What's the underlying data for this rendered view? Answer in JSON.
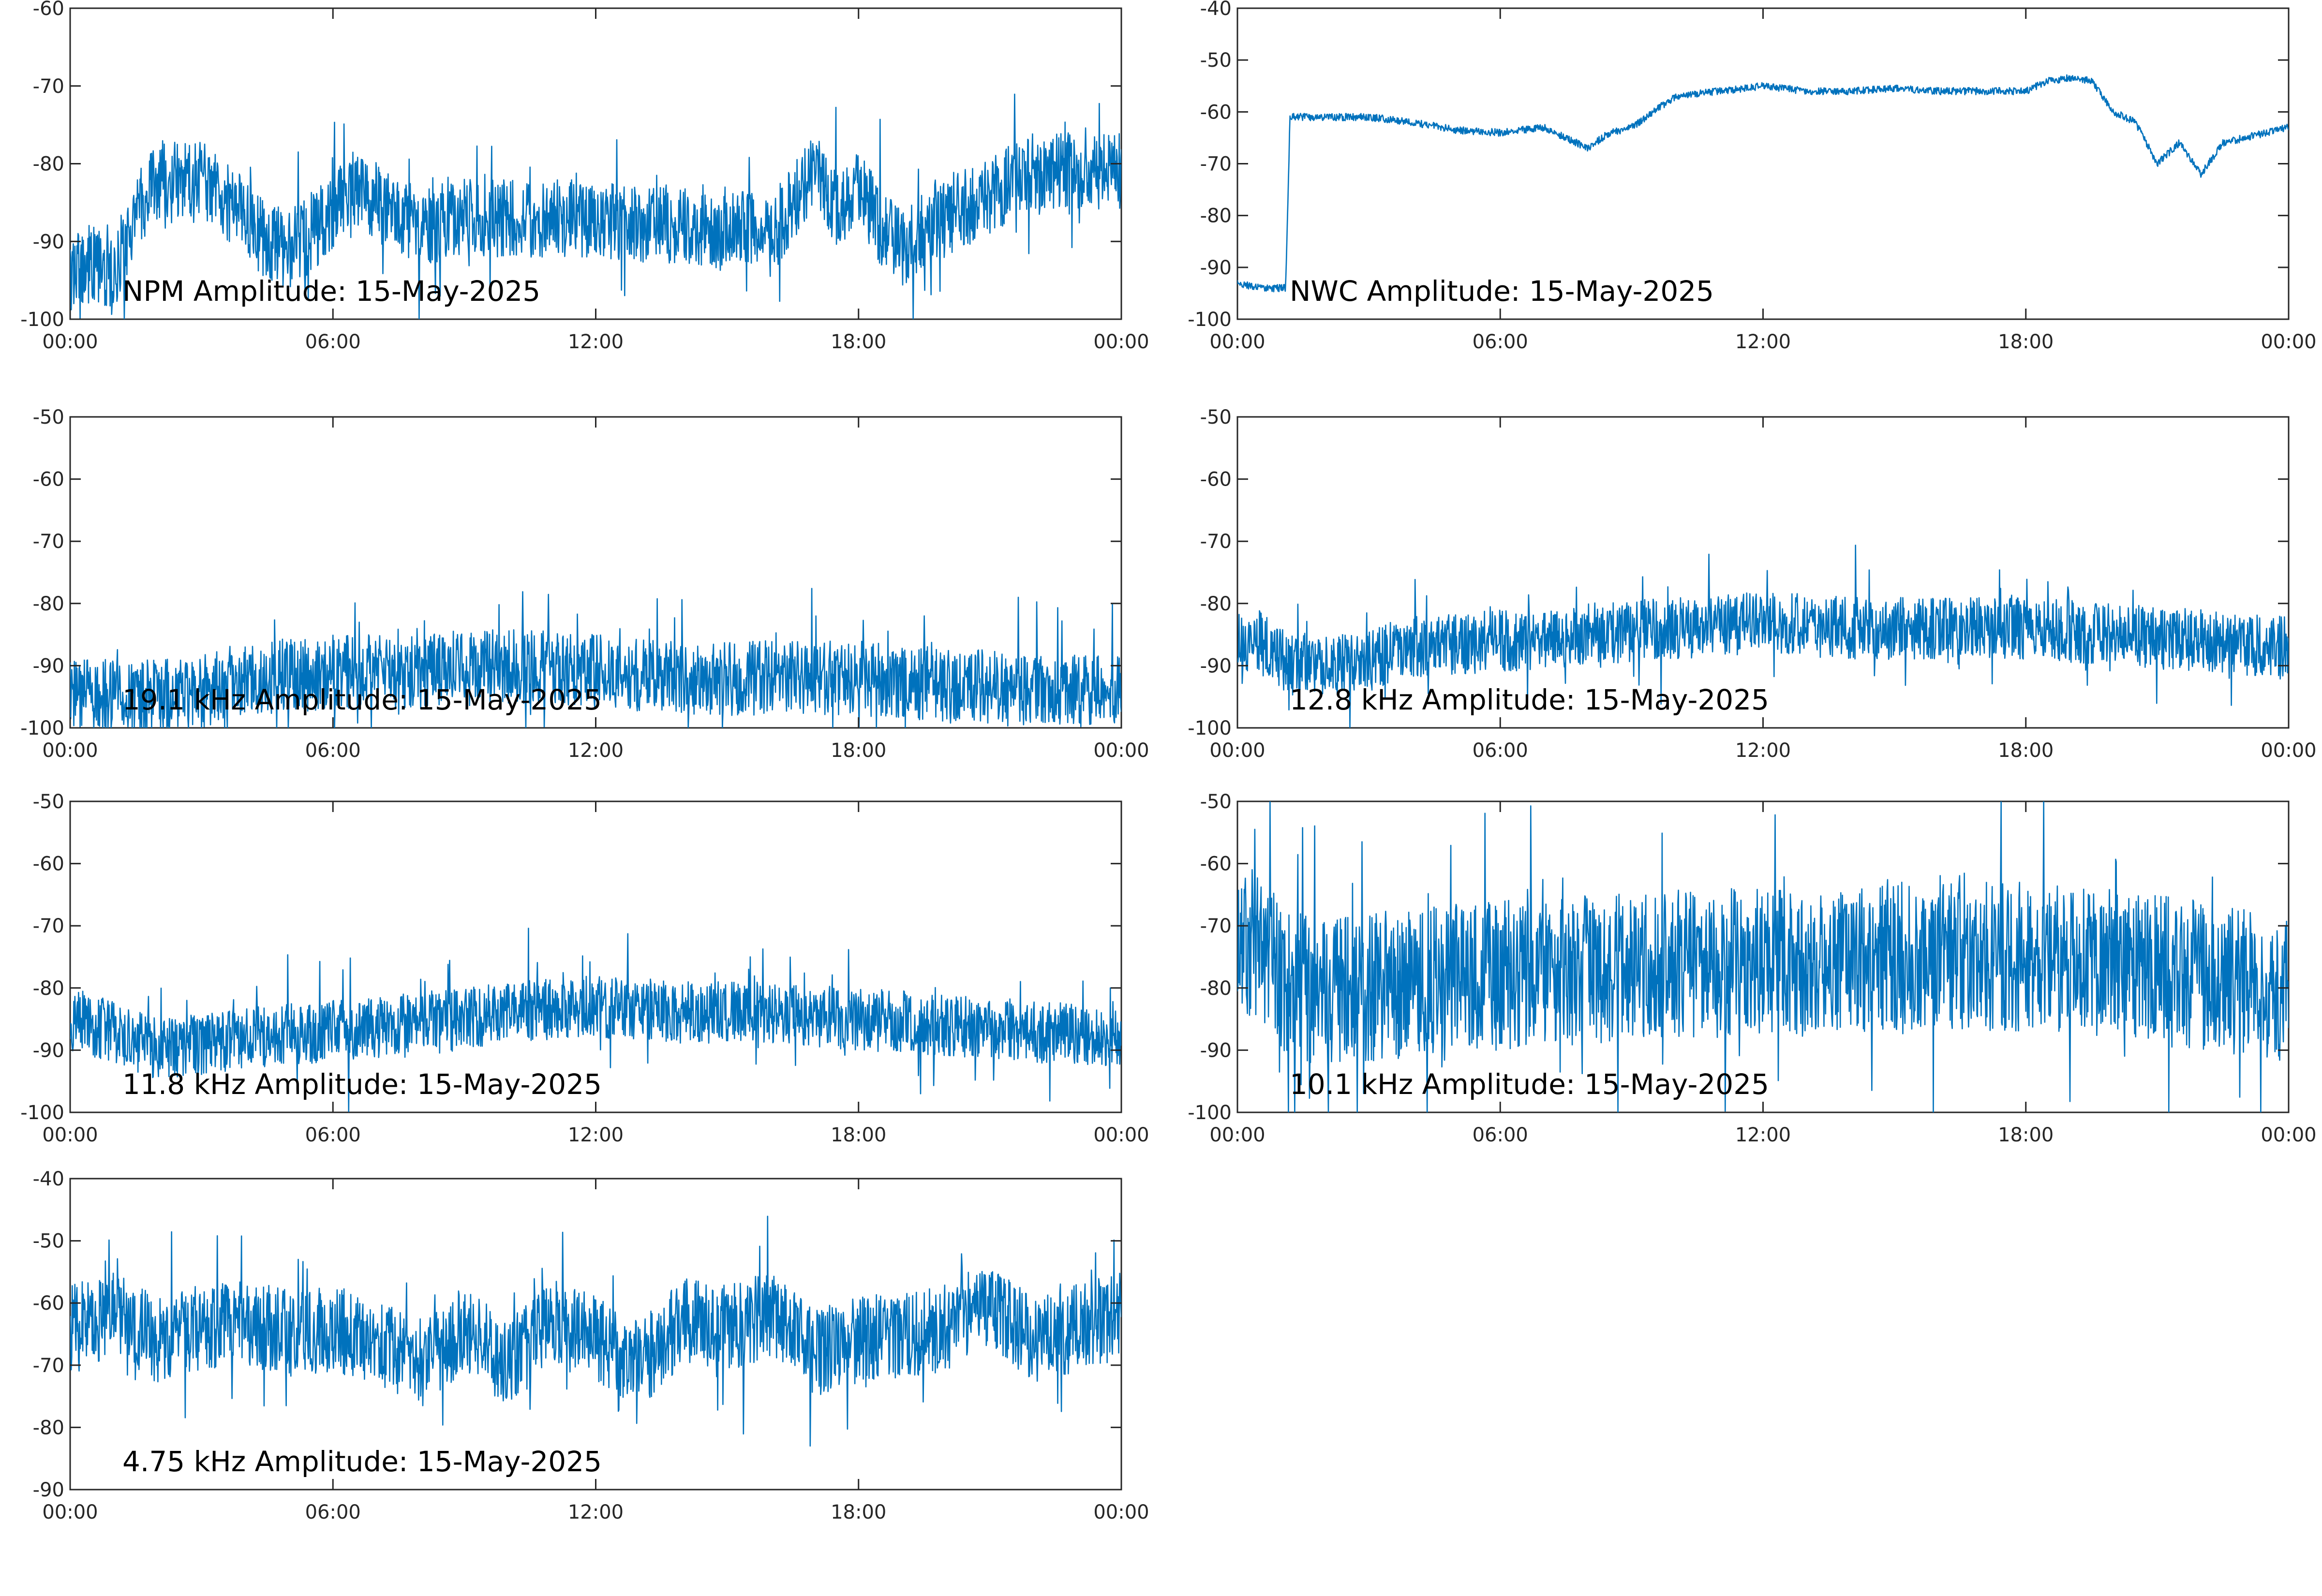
{
  "chart_data": [
    {
      "type": "line",
      "title": "NPM Amplitude: 15-May-2025",
      "x_tick_labels": [
        "00:00",
        "06:00",
        "12:00",
        "18:00",
        "00:00"
      ],
      "xlim_hours": [
        0,
        24
      ],
      "ylim": [
        -100,
        -60
      ],
      "y_ticks": [
        -60,
        -70,
        -80,
        -90,
        -100
      ],
      "grid": false,
      "series": [
        {
          "color": "#0072BD",
          "noise": 5,
          "x": [
            0,
            0.5,
            1,
            1.5,
            2,
            3,
            4,
            4.5,
            5,
            5.5,
            6,
            6.5,
            7,
            7.5,
            8,
            9,
            10,
            11,
            12,
            13,
            14,
            15,
            15.5,
            16,
            16.5,
            17,
            17.5,
            18,
            18.5,
            19,
            19.5,
            20,
            21,
            22,
            23,
            24
          ],
          "y": [
            -94,
            -93,
            -95,
            -86,
            -82,
            -82,
            -87,
            -90,
            -91,
            -89,
            -86,
            -83,
            -85,
            -87,
            -88,
            -87,
            -87,
            -87,
            -87,
            -88,
            -88,
            -89,
            -88,
            -90,
            -85,
            -81,
            -86,
            -83,
            -88,
            -91,
            -88,
            -87,
            -84,
            -81,
            -81,
            -81
          ]
        }
      ]
    },
    {
      "type": "line",
      "title": "NWC Amplitude: 15-May-2025",
      "x_tick_labels": [
        "00:00",
        "06:00",
        "12:00",
        "18:00",
        "00:00"
      ],
      "xlim_hours": [
        0,
        24
      ],
      "ylim": [
        -100,
        -40
      ],
      "y_ticks": [
        -40,
        -50,
        -60,
        -70,
        -80,
        -90,
        -100
      ],
      "grid": false,
      "series": [
        {
          "color": "#0072BD",
          "noise": 0.7,
          "x": [
            0,
            0.5,
            1.1,
            1.2,
            2,
            3,
            4,
            5,
            6,
            7,
            8,
            8.5,
            9,
            10,
            11,
            12,
            13,
            14,
            15,
            16,
            17,
            18,
            18.5,
            19,
            19.5,
            20,
            20.5,
            21,
            21.5,
            22,
            22.5,
            23,
            24
          ],
          "y": [
            -93,
            -94,
            -94,
            -61,
            -61,
            -61,
            -62,
            -63.5,
            -64,
            -63,
            -67,
            -64,
            -63,
            -57,
            -56,
            -55,
            -56,
            -56,
            -55.5,
            -56,
            -56,
            -56,
            -54,
            -53.5,
            -54,
            -60,
            -62,
            -70,
            -66,
            -72,
            -66,
            -65,
            -63
          ]
        }
      ]
    },
    {
      "type": "line",
      "title": "19.1 kHz Amplitude: 15-May-2025",
      "x_tick_labels": [
        "00:00",
        "06:00",
        "12:00",
        "18:00",
        "00:00"
      ],
      "xlim_hours": [
        0,
        24
      ],
      "ylim": [
        -100,
        -50
      ],
      "y_ticks": [
        -50,
        -60,
        -70,
        -80,
        -90,
        -100
      ],
      "grid": false,
      "series": [
        {
          "color": "#0072BD",
          "noise": 6,
          "x": [
            0,
            2,
            3,
            4,
            6,
            8,
            10,
            12,
            14,
            16,
            18,
            20,
            22,
            24
          ],
          "y": [
            -95,
            -95,
            -94,
            -92,
            -91,
            -91,
            -90,
            -91,
            -92,
            -92,
            -92,
            -93,
            -94,
            -94
          ]
        }
      ]
    },
    {
      "type": "line",
      "title": "12.8 kHz Amplitude: 15-May-2025",
      "x_tick_labels": [
        "00:00",
        "06:00",
        "12:00",
        "18:00",
        "00:00"
      ],
      "xlim_hours": [
        0,
        24
      ],
      "ylim": [
        -100,
        -50
      ],
      "y_ticks": [
        -50,
        -60,
        -70,
        -80,
        -90,
        -100
      ],
      "grid": false,
      "series": [
        {
          "color": "#0072BD",
          "noise": 5,
          "x": [
            0,
            0.5,
            1,
            2,
            3,
            4,
            6,
            8,
            10,
            12,
            14,
            16,
            18,
            20,
            22,
            24
          ],
          "y": [
            -86,
            -86,
            -89,
            -90,
            -89,
            -87,
            -86,
            -85,
            -84,
            -83,
            -84,
            -84,
            -84,
            -85,
            -86,
            -87
          ]
        }
      ]
    },
    {
      "type": "line",
      "title": "11.8 kHz Amplitude: 15-May-2025",
      "x_tick_labels": [
        "00:00",
        "06:00",
        "12:00",
        "18:00",
        "00:00"
      ],
      "xlim_hours": [
        0,
        24
      ],
      "ylim": [
        -100,
        -50
      ],
      "y_ticks": [
        -50,
        -60,
        -70,
        -80,
        -90,
        -100
      ],
      "grid": false,
      "series": [
        {
          "color": "#0072BD",
          "noise": 5,
          "x": [
            0,
            1,
            2,
            3,
            4,
            6,
            8,
            10,
            12,
            14,
            16,
            18,
            20,
            22,
            24
          ],
          "y": [
            -85,
            -87,
            -90,
            -89,
            -88,
            -87,
            -86,
            -84,
            -83,
            -84,
            -84,
            -85,
            -86,
            -87,
            -88
          ]
        }
      ]
    },
    {
      "type": "line",
      "title": "10.1 kHz Amplitude: 15-May-2025",
      "x_tick_labels": [
        "00:00",
        "06:00",
        "12:00",
        "18:00",
        "00:00"
      ],
      "xlim_hours": [
        0,
        24
      ],
      "ylim": [
        -100,
        -50
      ],
      "y_ticks": [
        -50,
        -60,
        -70,
        -80,
        -90,
        -100
      ],
      "grid": false,
      "series": [
        {
          "color": "#0072BD",
          "noise": 12,
          "x": [
            0,
            0.5,
            1,
            2,
            3,
            4,
            6,
            8,
            10,
            12,
            14,
            16,
            18,
            20,
            22,
            24
          ],
          "y": [
            -75,
            -72,
            -79,
            -81,
            -80,
            -79,
            -78,
            -77,
            -76,
            -76,
            -76,
            -75,
            -75,
            -76,
            -78,
            -80
          ]
        }
      ]
    },
    {
      "type": "line",
      "title": "4.75 kHz Amplitude: 15-May-2025",
      "x_tick_labels": [
        "00:00",
        "06:00",
        "12:00",
        "18:00",
        "00:00"
      ],
      "xlim_hours": [
        0,
        24
      ],
      "ylim": [
        -90,
        -40
      ],
      "y_ticks": [
        -40,
        -50,
        -60,
        -70,
        -80,
        -90
      ],
      "grid": false,
      "series": [
        {
          "color": "#0072BD",
          "noise": 7,
          "x": [
            0,
            1,
            2,
            3,
            4,
            5,
            6,
            7,
            8,
            9,
            10,
            11,
            12,
            13,
            14,
            15,
            16,
            17,
            18,
            19,
            20,
            21,
            22,
            23,
            24
          ],
          "y": [
            -64,
            -62,
            -66,
            -64,
            -63,
            -65,
            -64,
            -66,
            -70,
            -64,
            -70,
            -63,
            -66,
            -70,
            -63,
            -64,
            -62,
            -68,
            -66,
            -65,
            -64,
            -60,
            -66,
            -64,
            -62
          ]
        }
      ]
    }
  ]
}
